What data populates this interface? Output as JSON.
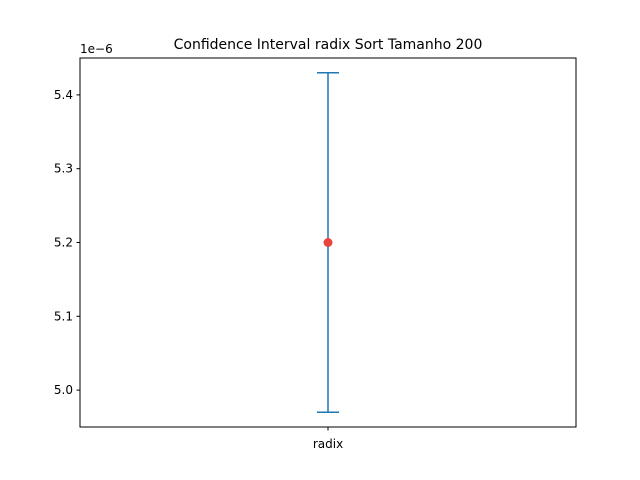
{
  "chart_data": {
    "type": "errorbar",
    "title": "Confidence Interval radix Sort Tamanho 200",
    "xlabel": "",
    "ylabel": "",
    "y_offset_label": "1e−6",
    "categories": [
      "radix"
    ],
    "points": [
      {
        "category": "radix",
        "mean": 5.2,
        "lower": 4.97,
        "upper": 5.43
      }
    ],
    "ylim": [
      4.95,
      5.45
    ],
    "yticks": [
      5.0,
      5.1,
      5.2,
      5.3,
      5.4
    ],
    "ytick_labels": [
      "5.0",
      "5.1",
      "5.2",
      "5.3",
      "5.4"
    ],
    "grid": false,
    "colors": {
      "errorbar": "#1f77b4",
      "mean_marker": "#e8453c",
      "axes": "#000000"
    }
  }
}
